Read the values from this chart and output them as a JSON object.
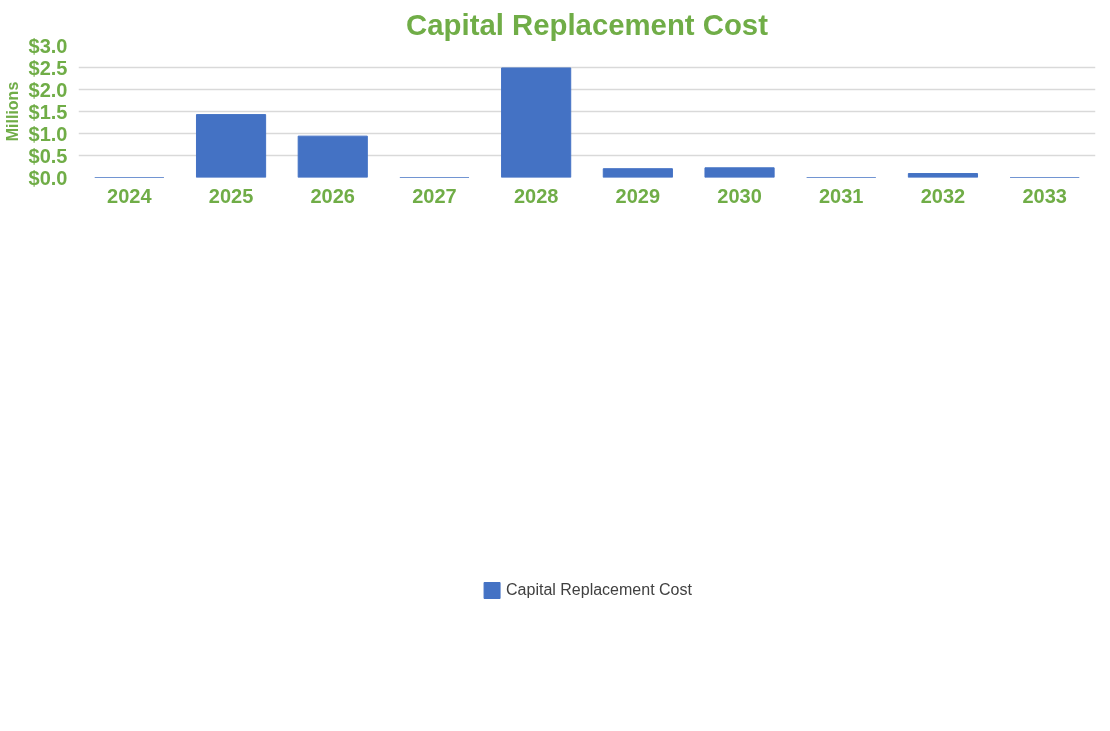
{
  "chart_data": {
    "type": "bar",
    "title": "Capital Replacement Cost",
    "ylabel": "Millions",
    "categories": [
      "2024",
      "2025",
      "2026",
      "2027",
      "2028",
      "2029",
      "2030",
      "2031",
      "2032",
      "2033"
    ],
    "series": [
      {
        "name": "Capital Replacement Cost",
        "color": "#4472c4",
        "values": [
          0,
          1.43,
          0.94,
          0,
          2.49,
          0.2,
          0.22,
          0,
          0.09,
          0
        ]
      }
    ],
    "ylim": [
      0,
      3.0
    ],
    "yticks": [
      {
        "value": 0,
        "label": "$0.0"
      },
      {
        "value": 0.5,
        "label": "$0.5"
      },
      {
        "value": 1.0,
        "label": "$1.0"
      },
      {
        "value": 1.5,
        "label": "$1.5"
      },
      {
        "value": 2.0,
        "label": "$2.0"
      },
      {
        "value": 2.5,
        "label": "$2.5"
      },
      {
        "value": 3.0,
        "label": "$3.0"
      }
    ],
    "grid": "y",
    "legend": "bottom"
  }
}
